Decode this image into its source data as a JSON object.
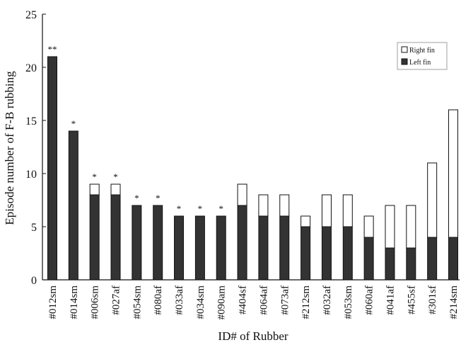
{
  "chart_data": {
    "type": "bar",
    "stacked": true,
    "xlabel": "ID# of Rubber",
    "ylabel": "Episode number of F-B rubbing",
    "ylim": [
      0,
      25
    ],
    "yticks": [
      "0",
      "5",
      "10",
      "15",
      "20",
      "25"
    ],
    "yticks_values": [
      0,
      5,
      10,
      15,
      20,
      25
    ],
    "legend_position": "top-right",
    "categories": [
      "#012sm",
      "#014sm",
      "#006sm",
      "#027af",
      "#054sm",
      "#080af",
      "#033af",
      "#034sm",
      "#090am",
      "#404sf",
      "#064af",
      "#073af",
      "#212sm",
      "#032af",
      "#053sm",
      "#060af",
      "#041af",
      "#455sf",
      "#301sf",
      "#214sm"
    ],
    "series": [
      {
        "name": "Left fin",
        "color": "#333333",
        "values": [
          21,
          14,
          8,
          8,
          7,
          7,
          6,
          6,
          6,
          7,
          6,
          6,
          5,
          5,
          5,
          4,
          3,
          3,
          4,
          4
        ]
      },
      {
        "name": "Right fin",
        "color": "#ffffff",
        "values": [
          0,
          0,
          1,
          1,
          0,
          0,
          0,
          0,
          0,
          2,
          2,
          2,
          1,
          3,
          3,
          2,
          4,
          4,
          7,
          12
        ]
      }
    ],
    "annotations": [
      "**",
      "*",
      "*",
      "*",
      "*",
      "*",
      "*",
      "*",
      "*",
      "",
      "",
      "",
      "",
      "",
      "",
      "",
      "",
      "",
      "",
      ""
    ]
  }
}
